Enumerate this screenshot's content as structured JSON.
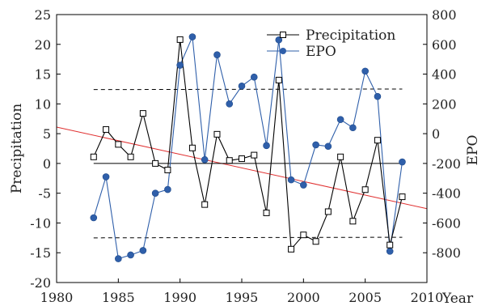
{
  "chart_data": {
    "type": "line",
    "x": [
      1983,
      1984,
      1985,
      1986,
      1987,
      1988,
      1989,
      1990,
      1991,
      1992,
      1993,
      1994,
      1995,
      1996,
      1997,
      1998,
      1999,
      2000,
      2001,
      2002,
      2003,
      2004,
      2005,
      2006,
      2007,
      2008
    ],
    "xlim": [
      1980,
      2010
    ],
    "xticks": [
      1980,
      1985,
      1990,
      1995,
      2000,
      2005,
      2010
    ],
    "xlabel": "Year",
    "ylabel": "Precipitation",
    "ylim": [
      -20,
      25
    ],
    "yticks": [
      -20,
      -15,
      -10,
      -5,
      0,
      5,
      10,
      15,
      20,
      25
    ],
    "y2label": "EPO",
    "y2lim": [
      -1000,
      800
    ],
    "y2ticks": [
      -800,
      -600,
      -400,
      -200,
      0,
      200,
      400,
      600,
      800
    ],
    "series": [
      {
        "name": "Precipitation",
        "axis": "left",
        "color": "#000000",
        "marker": "open-square",
        "values": [
          1.1,
          5.7,
          3.2,
          1.1,
          8.4,
          0.0,
          -1.1,
          20.8,
          2.6,
          -6.9,
          4.9,
          0.5,
          0.8,
          1.4,
          -8.3,
          14.0,
          -14.4,
          -12.0,
          -13.1,
          -8.1,
          1.1,
          -9.7,
          -4.4,
          3.9,
          -13.7,
          -5.6
        ]
      },
      {
        "name": "EPO",
        "axis": "right",
        "color": "#2f5faa",
        "marker": "filled-circle",
        "values": [
          -565,
          -290,
          -840,
          -815,
          -785,
          -400,
          -375,
          460,
          650,
          -175,
          530,
          200,
          320,
          380,
          -80,
          630,
          -310,
          -345,
          -75,
          -85,
          95,
          40,
          420,
          250,
          -790,
          -190
        ]
      }
    ],
    "reference_lines": [
      {
        "kind": "trend",
        "color": "#e03030",
        "axis": "left",
        "x": [
          1980,
          2010
        ],
        "y": [
          6.1,
          -7.6
        ]
      },
      {
        "kind": "zero",
        "color": "#000000",
        "axis": "left",
        "x": [
          1983,
          2008
        ],
        "y": [
          0,
          0
        ]
      },
      {
        "kind": "upper-dashed",
        "color": "#000000",
        "axis": "left",
        "x": [
          1983,
          2008
        ],
        "y": [
          12.4,
          12.5
        ]
      },
      {
        "kind": "lower-dashed",
        "color": "#000000",
        "axis": "left",
        "x": [
          1983,
          2008
        ],
        "y": [
          -12.5,
          -12.4
        ]
      }
    ],
    "legend_position": "top-right"
  }
}
